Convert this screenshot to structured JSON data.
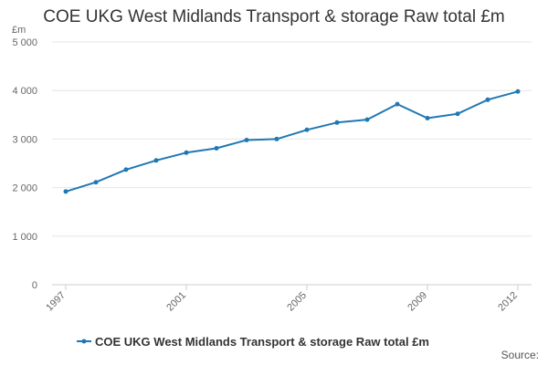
{
  "chart_data": {
    "type": "line",
    "title": "COE UKG West Midlands Transport & storage Raw total £m",
    "unit_label": "£m",
    "source_label": "Source:",
    "ylim": [
      0,
      5000
    ],
    "y_ticks": [
      0,
      1000,
      2000,
      3000,
      4000,
      5000
    ],
    "y_tick_labels": [
      "0",
      "1 000",
      "2 000",
      "3 000",
      "4 000",
      "5 000"
    ],
    "x_range": [
      1997,
      2012
    ],
    "x_tick_labels": [
      "1997",
      "2001",
      "2005",
      "2009",
      "2012"
    ],
    "grid": true,
    "legend_position": "bottom",
    "colors": {
      "line": "#1f78b4",
      "grid": "#e6e6e6",
      "axis": "#cccccc"
    },
    "series": [
      {
        "name": "COE UKG West Midlands Transport & storage Raw total £m",
        "x": [
          1997,
          1998,
          1999,
          2000,
          2001,
          2002,
          2003,
          2004,
          2005,
          2006,
          2007,
          2008,
          2009,
          2010,
          2011,
          2012
        ],
        "values": [
          1920,
          2110,
          2370,
          2560,
          2720,
          2810,
          2980,
          3000,
          3190,
          3340,
          3400,
          3720,
          3430,
          3520,
          3810,
          3980
        ]
      }
    ]
  }
}
